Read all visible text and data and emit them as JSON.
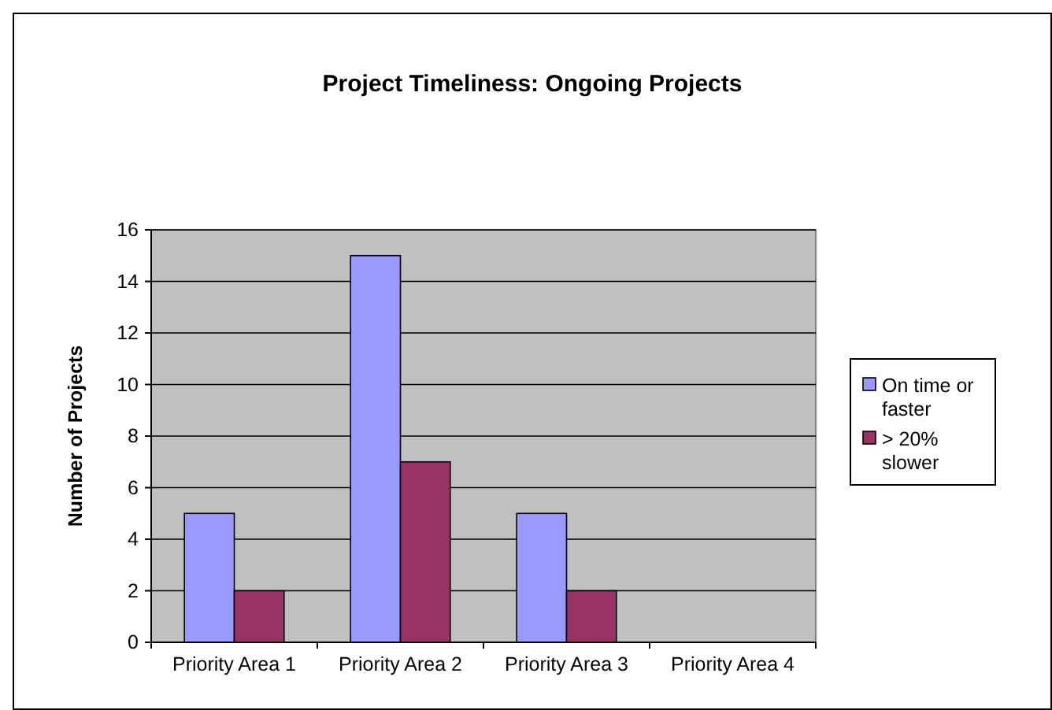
{
  "chart_data": {
    "type": "bar",
    "title": "Project Timeliness: Ongoing Projects",
    "ylabel": "Number of Projects",
    "categories": [
      "Priority Area 1",
      "Priority Area 2",
      "Priority Area 3",
      "Priority Area 4"
    ],
    "series": [
      {
        "name": "On time or faster",
        "color": "#9999ff",
        "values": [
          5,
          15,
          5,
          null
        ]
      },
      {
        "name": "> 20% slower",
        "color": "#993366",
        "values": [
          2,
          7,
          2,
          null
        ]
      }
    ],
    "ylim": [
      0,
      16
    ],
    "yticks": [
      0,
      2,
      4,
      6,
      8,
      10,
      12,
      14,
      16
    ],
    "grid": "y",
    "legend": "right"
  }
}
